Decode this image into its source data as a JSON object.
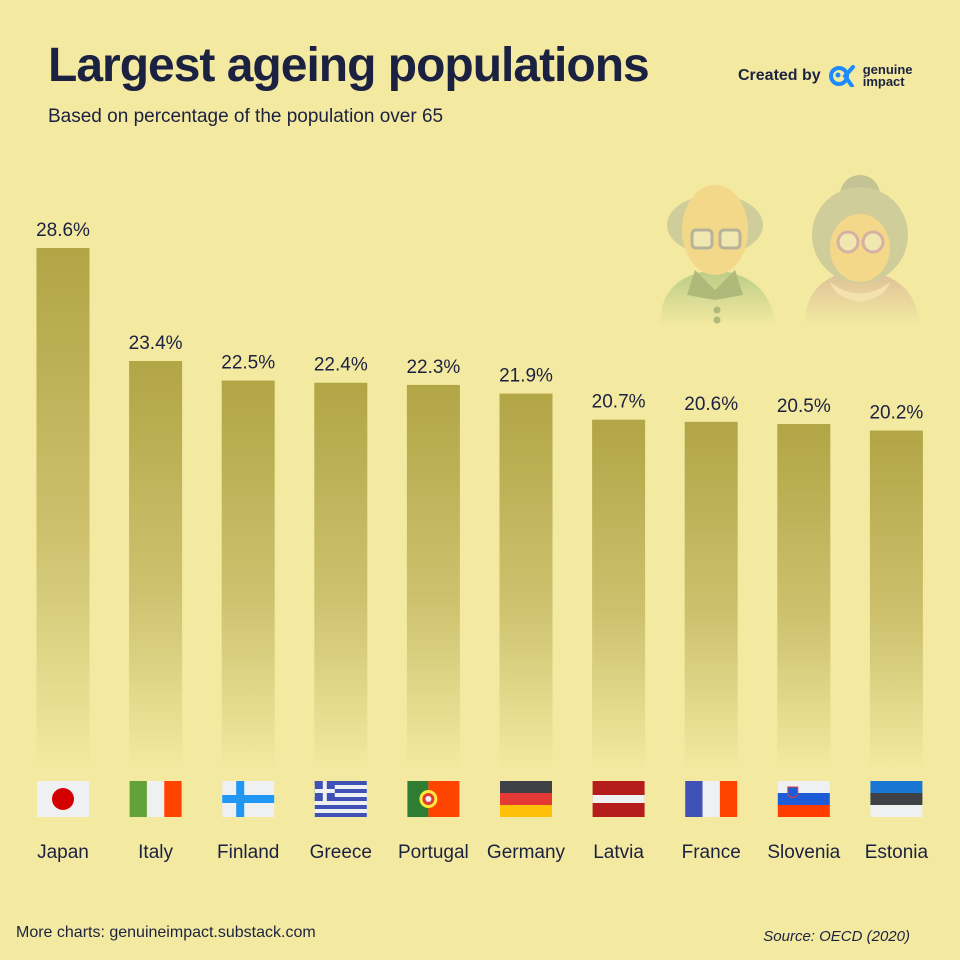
{
  "header": {
    "title": "Largest ageing populations",
    "subtitle": "Based on percentage of the population over 65",
    "credit_label": "Created by",
    "logo_text_1": "genuine",
    "logo_text_2": "impact"
  },
  "footer": {
    "more": "More charts: genuineimpact.substack.com",
    "source": "Source: OECD (2020)"
  },
  "colors": {
    "background": "#f3e9a0",
    "bar": "#b1a546",
    "text": "#1b2140",
    "logo": "#1a8cff"
  },
  "illustration": {
    "icons": [
      "elderly-man-icon",
      "elderly-woman-icon"
    ]
  },
  "chart_data": {
    "type": "bar",
    "title": "Largest ageing populations",
    "subtitle": "Based on percentage of the population over 65",
    "categories": [
      "Japan",
      "Italy",
      "Finland",
      "Greece",
      "Portugal",
      "Germany",
      "Latvia",
      "France",
      "Slovenia",
      "Estonia"
    ],
    "values": [
      28.6,
      23.4,
      22.5,
      22.4,
      22.3,
      21.9,
      20.7,
      20.6,
      20.5,
      20.2
    ],
    "data_labels": [
      "28.6%",
      "23.4%",
      "22.5%",
      "22.4%",
      "22.3%",
      "21.9%",
      "20.7%",
      "20.6%",
      "20.5%",
      "20.2%"
    ],
    "flags": [
      "japan-flag",
      "italy-flag",
      "finland-flag",
      "greece-flag",
      "portugal-flag",
      "germany-flag",
      "latvia-flag",
      "france-flag",
      "slovenia-flag",
      "estonia-flag"
    ],
    "unit": "%",
    "grid": false,
    "legend": "none"
  }
}
